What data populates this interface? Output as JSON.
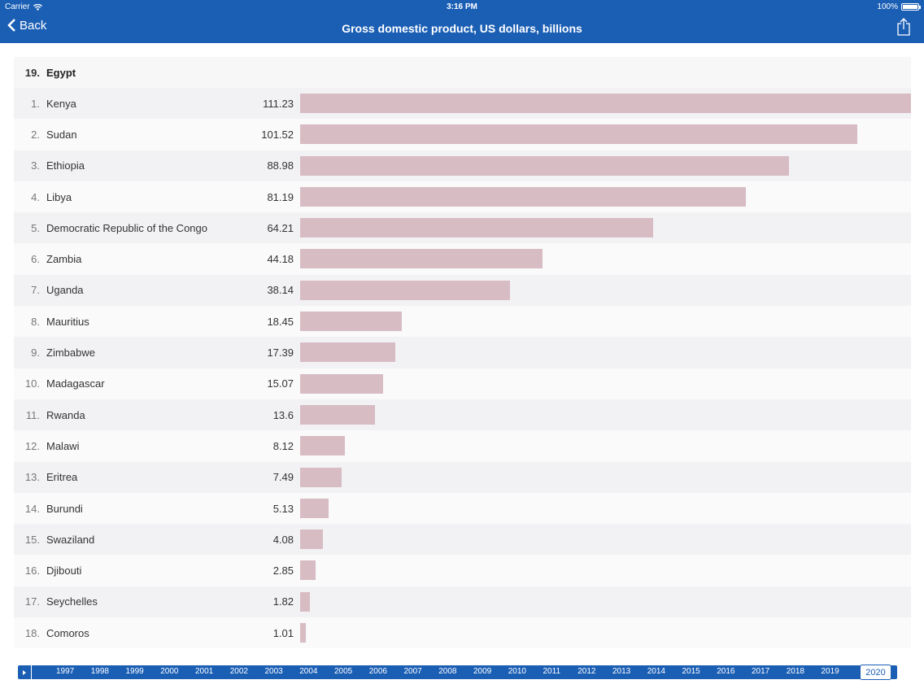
{
  "status_bar": {
    "carrier": "Carrier",
    "time": "3:16 PM",
    "battery": "100%"
  },
  "nav": {
    "back_label": "Back",
    "title": "Gross domestic product, US dollars, billions"
  },
  "selected_country": {
    "rank": "19.",
    "name": "Egypt"
  },
  "colors": {
    "bar": "#d8bcc4",
    "nav": "#1b5fb5"
  },
  "chart_data": {
    "type": "bar",
    "orientation": "horizontal",
    "title": "Gross domestic product, US dollars, billions",
    "xlim": [
      0,
      111.23
    ],
    "categories": [
      "Kenya",
      "Sudan",
      "Ethiopia",
      "Libya",
      "Democratic Republic of the Congo",
      "Zambia",
      "Uganda",
      "Mauritius",
      "Zimbabwe",
      "Madagascar",
      "Rwanda",
      "Malawi",
      "Eritrea",
      "Burundi",
      "Swaziland",
      "Djibouti",
      "Seychelles",
      "Comoros"
    ],
    "ranks": [
      "1.",
      "2.",
      "3.",
      "4.",
      "5.",
      "6.",
      "7.",
      "8.",
      "9.",
      "10.",
      "11.",
      "12.",
      "13.",
      "14.",
      "15.",
      "16.",
      "17.",
      "18."
    ],
    "values": [
      111.23,
      101.52,
      88.98,
      81.19,
      64.21,
      44.18,
      38.14,
      18.45,
      17.39,
      15.07,
      13.6,
      8.12,
      7.49,
      5.13,
      4.08,
      2.85,
      1.82,
      1.01
    ],
    "value_labels": [
      "111.23",
      "101.52",
      "88.98",
      "81.19",
      "64.21",
      "44.18",
      "38.14",
      "18.45",
      "17.39",
      "15.07",
      "13.6",
      "8.12",
      "7.49",
      "5.13",
      "4.08",
      "2.85",
      "1.82",
      "1.01"
    ]
  },
  "timeline": {
    "years": [
      "1997",
      "1998",
      "1999",
      "2000",
      "2001",
      "2002",
      "2003",
      "2004",
      "2005",
      "2006",
      "2007",
      "2008",
      "2009",
      "2010",
      "2011",
      "2012",
      "2013",
      "2014",
      "2015",
      "2016",
      "2017",
      "2018",
      "2019",
      "2020"
    ],
    "selected": "2020"
  }
}
